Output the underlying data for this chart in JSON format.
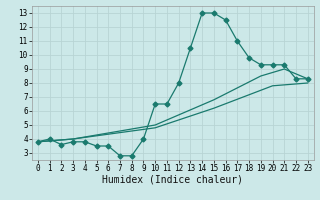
{
  "line1_x": [
    0,
    1,
    2,
    3,
    4,
    5,
    6,
    7,
    8,
    9,
    10,
    11,
    12,
    13,
    14,
    15,
    16,
    17,
    18,
    19,
    20,
    21,
    22,
    23
  ],
  "line1_y": [
    3.8,
    4.0,
    3.6,
    3.8,
    3.8,
    3.5,
    3.5,
    2.8,
    2.8,
    4.0,
    6.5,
    6.5,
    8.0,
    10.5,
    13.0,
    13.0,
    12.5,
    11.0,
    9.8,
    9.3,
    9.3,
    9.3,
    8.3,
    8.3
  ],
  "line2_x": [
    0,
    3,
    10,
    15,
    19,
    21,
    23
  ],
  "line2_y": [
    3.8,
    4.0,
    5.0,
    6.8,
    8.5,
    9.0,
    8.3
  ],
  "line3_x": [
    0,
    3,
    10,
    15,
    20,
    23
  ],
  "line3_y": [
    3.8,
    4.0,
    4.8,
    6.2,
    7.8,
    8.0
  ],
  "color": "#1a7a6e",
  "bg_color": "#cce8e8",
  "grid_color": "#b8d4d4",
  "xlabel": "Humidex (Indice chaleur)",
  "xlim": [
    -0.5,
    23.5
  ],
  "ylim": [
    2.5,
    13.5
  ],
  "xticks": [
    0,
    1,
    2,
    3,
    4,
    5,
    6,
    7,
    8,
    9,
    10,
    11,
    12,
    13,
    14,
    15,
    16,
    17,
    18,
    19,
    20,
    21,
    22,
    23
  ],
  "yticks": [
    3,
    4,
    5,
    6,
    7,
    8,
    9,
    10,
    11,
    12,
    13
  ],
  "tick_fontsize": 5.5,
  "xlabel_fontsize": 7
}
